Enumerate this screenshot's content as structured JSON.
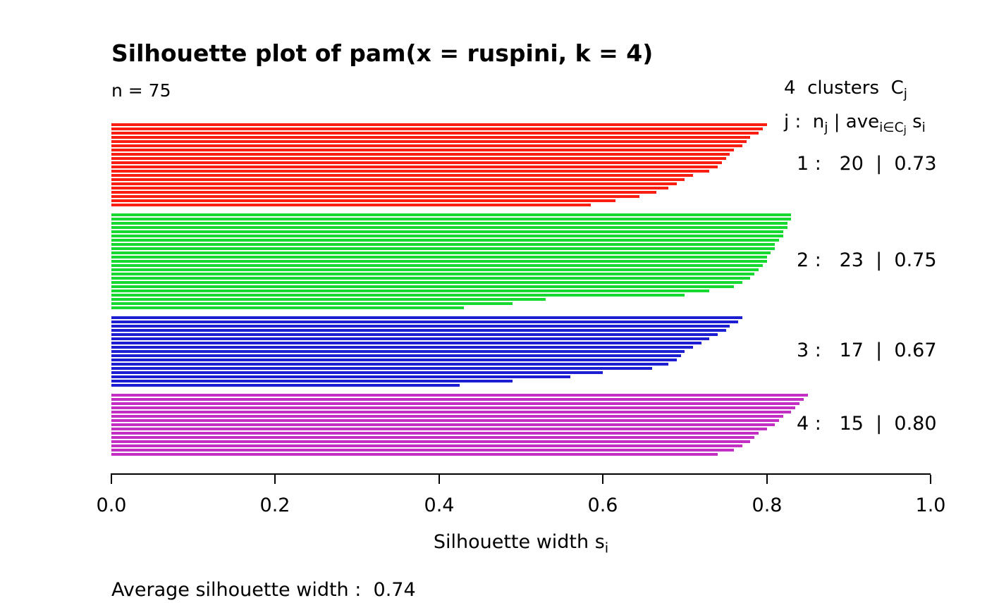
{
  "title": "Silhouette plot of pam(x = ruspini, k = 4)",
  "n_label": "n = 75",
  "legend": {
    "line1": {
      "main": "4  clusters  C",
      "sub": "j"
    },
    "line2": {
      "p1": "j :  n",
      "s1": "j",
      "p2": " | ave",
      "s2": "i∈C",
      "s2b": "j",
      "p3": " s",
      "s3": "i"
    },
    "clusters": [
      {
        "label": "1 :   20  |  0.73"
      },
      {
        "label": "2 :   23  |  0.75"
      },
      {
        "label": "3 :   17  |  0.67"
      },
      {
        "label": "4 :   15  |  0.80"
      }
    ]
  },
  "xaxis": {
    "tick_values": [
      0,
      0.2,
      0.4,
      0.6,
      0.8,
      1.0
    ],
    "tick_labels": [
      "0.0",
      "0.2",
      "0.4",
      "0.6",
      "0.8",
      "1.0"
    ],
    "label_main": "Silhouette width s",
    "label_sub": "i"
  },
  "footer": "Average silhouette width :  0.74",
  "chart_data": {
    "type": "bar",
    "orientation": "horizontal",
    "title": "Silhouette plot of pam(x = ruspini, k = 4)",
    "n": 75,
    "xlabel": "Silhouette width s_i",
    "xlim": [
      0,
      1
    ],
    "average_silhouette_width": 0.74,
    "grid": false,
    "legend_position": "right",
    "clusters": [
      {
        "j": 1,
        "size": 20,
        "ave_sil_width": 0.73,
        "color": "#f81f12",
        "values": [
          0.8,
          0.795,
          0.79,
          0.78,
          0.775,
          0.77,
          0.76,
          0.755,
          0.75,
          0.745,
          0.74,
          0.73,
          0.71,
          0.7,
          0.69,
          0.68,
          0.665,
          0.645,
          0.615,
          0.585
        ]
      },
      {
        "j": 2,
        "size": 23,
        "ave_sil_width": 0.75,
        "color": "#15d92e",
        "values": [
          0.83,
          0.83,
          0.825,
          0.825,
          0.82,
          0.82,
          0.815,
          0.81,
          0.81,
          0.805,
          0.8,
          0.8,
          0.795,
          0.79,
          0.785,
          0.78,
          0.77,
          0.76,
          0.73,
          0.7,
          0.53,
          0.49,
          0.43
        ]
      },
      {
        "j": 3,
        "size": 17,
        "ave_sil_width": 0.67,
        "color": "#1d1dd2",
        "values": [
          0.77,
          0.765,
          0.755,
          0.75,
          0.74,
          0.73,
          0.72,
          0.71,
          0.7,
          0.695,
          0.69,
          0.68,
          0.66,
          0.6,
          0.56,
          0.49,
          0.425
        ]
      },
      {
        "j": 4,
        "size": 15,
        "ave_sil_width": 0.8,
        "color": "#c32ec3",
        "values": [
          0.85,
          0.845,
          0.84,
          0.835,
          0.83,
          0.82,
          0.815,
          0.81,
          0.8,
          0.79,
          0.785,
          0.78,
          0.77,
          0.76,
          0.74
        ]
      }
    ]
  }
}
